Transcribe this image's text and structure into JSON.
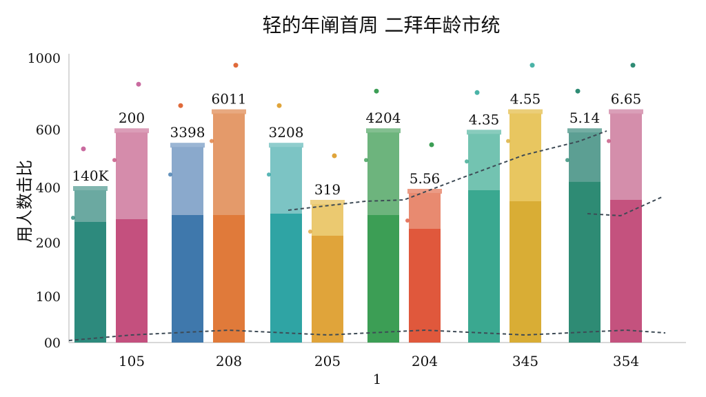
{
  "chart_data": {
    "type": "bar",
    "title": "轻的年阐首周 二拜年龄市统",
    "ylabel": "用人数击比",
    "xlabel": "1",
    "yticks": [
      "00",
      "100",
      "200",
      "400",
      "600",
      "1000"
    ],
    "categories": [
      "105",
      "208",
      "205",
      "204",
      "345",
      "354"
    ],
    "series": [
      {
        "values": [
          390,
          540,
          540,
          590,
          585,
          590
        ],
        "lower_values": [
          275,
          300,
          305,
          300,
          390,
          420
        ],
        "colors": [
          "#2d8a7d",
          "#3f78ac",
          "#2fa4a4",
          "#3c9e55",
          "#3aa890",
          "#2e8b74"
        ],
        "light_colors": [
          "#6ba9a1",
          "#8aa9cc",
          "#7cc4c4",
          "#6db47d",
          "#73c3b1",
          "#5c9f93"
        ]
      },
      {
        "values": [
          590,
          690,
          340,
          380,
          690,
          690
        ],
        "lower_values": [
          285,
          300,
          225,
          250,
          350,
          355
        ],
        "colors": [
          "#c4507e",
          "#e07a3a",
          "#e0a43a",
          "#e0583c",
          "#d9ad35",
          "#c4527e"
        ],
        "light_colors": [
          "#d58cab",
          "#e49a6a",
          "#ebc970",
          "#e88a70",
          "#e8c660",
          "#d48eab"
        ]
      }
    ],
    "bar_labels": [
      "140K",
      "200",
      "3398",
      "6011",
      "3208",
      "319",
      "4204",
      "5.56",
      "4.35",
      "4.55",
      "5.14",
      "6.65"
    ],
    "dot_colors": [
      "#c96a9f",
      "#e06a3a",
      "#e0a43a",
      "#3c9e55",
      "#4ab3a7",
      "#2e8b74"
    ],
    "ylim": [
      0,
      1000
    ],
    "grid": false,
    "legend": "none"
  }
}
